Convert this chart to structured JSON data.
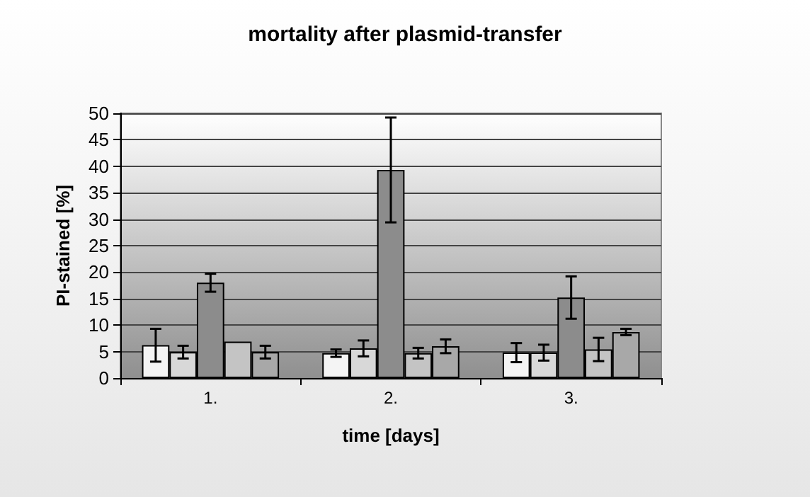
{
  "chart_data": {
    "type": "bar",
    "title": "mortality after plasmid-transfer",
    "xlabel": "time [days]",
    "ylabel": "PI-stained [%]",
    "categories": [
      "1.",
      "2.",
      "3."
    ],
    "series": [
      {
        "color": "#f4f4f4",
        "values": [
          6.2,
          4.7,
          4.8
        ],
        "errors": [
          3.1,
          0.7,
          1.8
        ]
      },
      {
        "color": "#d8d8d8",
        "values": [
          4.9,
          5.6,
          4.8
        ],
        "errors": [
          1.2,
          1.5,
          1.5
        ]
      },
      {
        "color": "#8c8c8c",
        "values": [
          18.0,
          39.3,
          15.2
        ],
        "errors": [
          1.7,
          9.9,
          4.0
        ]
      },
      {
        "color": "#c4c4c4",
        "values": [
          6.9,
          4.7,
          5.4
        ],
        "errors": [
          null,
          1.0,
          2.2
        ]
      },
      {
        "color": "#a8a8a8",
        "values": [
          4.9,
          6.0,
          8.7
        ],
        "errors": [
          1.2,
          1.3,
          0.6
        ]
      }
    ],
    "ylim": [
      0,
      50
    ],
    "yticks": [
      0,
      5,
      10,
      15,
      20,
      25,
      30,
      35,
      40,
      45,
      50
    ],
    "grid": "y"
  }
}
